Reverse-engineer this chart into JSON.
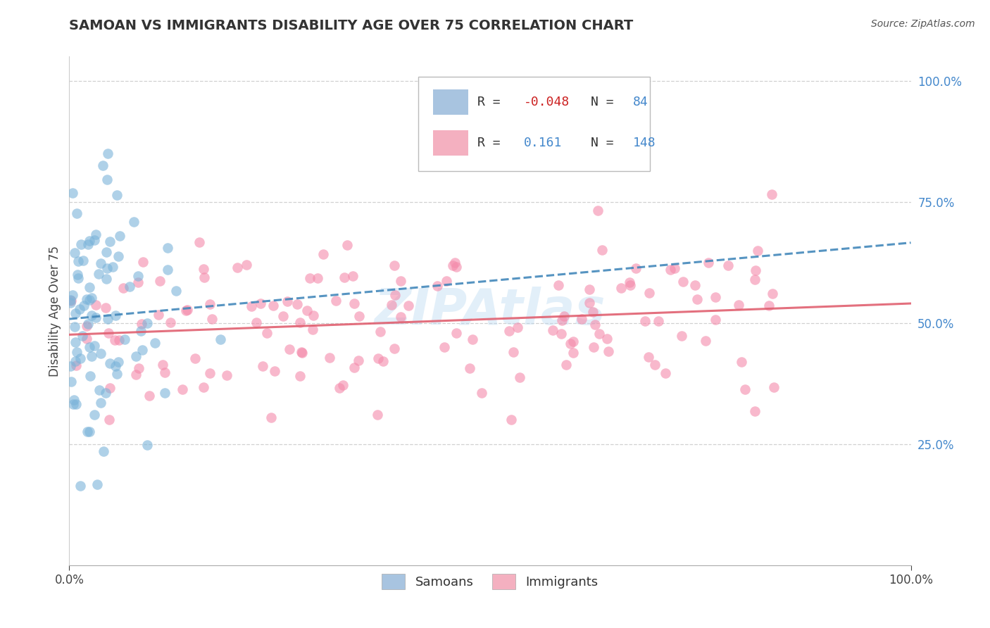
{
  "title": "SAMOAN VS IMMIGRANTS DISABILITY AGE OVER 75 CORRELATION CHART",
  "source": "Source: ZipAtlas.com",
  "ylabel": "Disability Age Over 75",
  "ytick_vals": [
    0.25,
    0.5,
    0.75,
    1.0
  ],
  "ytick_labels": [
    "25.0%",
    "50.0%",
    "75.0%",
    "100.0%"
  ],
  "xtick_vals": [
    0.0,
    1.0
  ],
  "xtick_labels": [
    "0.0%",
    "100.0%"
  ],
  "samoans_R": -0.048,
  "samoans_N": 84,
  "immigrants_R": 0.161,
  "immigrants_N": 148,
  "samoan_dot_color": "#7ab3d9",
  "immigrant_dot_color": "#f48aaa",
  "samoan_legend_color": "#a8c4e0",
  "immigrant_legend_color": "#f4b0c0",
  "samoan_line_color": "#4488bb",
  "immigrant_line_color": "#e06070",
  "xmin": 0.0,
  "xmax": 1.0,
  "ymin": 0.0,
  "ymax": 1.05,
  "legend_label_samoans": "Samoans",
  "legend_label_immigrants": "Immigrants",
  "watermark": "ZIPAtlas",
  "title_fontsize": 14,
  "axis_label_fontsize": 12,
  "tick_fontsize": 12,
  "legend_fontsize": 13,
  "source_fontsize": 10,
  "samoans_seed": 12345,
  "immigrants_seed": 67890
}
